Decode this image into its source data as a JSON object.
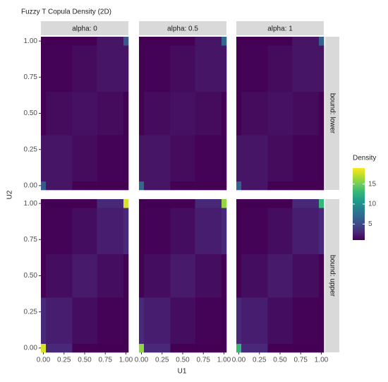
{
  "chart_data": {
    "type": "heatmap",
    "title": "Fuzzy T Copula Density (2D)",
    "x_label": "U1",
    "y_label": "U2",
    "facet_cols": [
      "alpha: 0",
      "alpha: 0.5",
      "alpha: 1"
    ],
    "facet_rows": [
      "bound: lower",
      "bound: upper"
    ],
    "x_bins": [
      -0.03,
      0.03,
      0.35,
      0.65,
      0.97,
      1.03
    ],
    "y_bins": [
      -0.03,
      0.03,
      0.35,
      0.65,
      0.97,
      1.03
    ],
    "xlim": [
      -0.03,
      1.03
    ],
    "ylim": [
      -0.03,
      1.03
    ],
    "xticks": [
      {
        "value": 0,
        "label": "0.00"
      },
      {
        "value": 0.25,
        "label": "0.25"
      },
      {
        "value": 0.5,
        "label": "0.50"
      },
      {
        "value": 0.75,
        "label": "0.75"
      },
      {
        "value": 1,
        "label": "1.00"
      }
    ],
    "yticks": [
      {
        "value": 0,
        "label": "0.00"
      },
      {
        "value": 0.25,
        "label": "0.25"
      },
      {
        "value": 0.5,
        "label": "0.50"
      },
      {
        "value": 0.75,
        "label": "0.75"
      },
      {
        "value": 1,
        "label": "1.00"
      }
    ],
    "colormap": "viridis",
    "legend_title": "Density",
    "clim": [
      1,
      19
    ],
    "cticks": [
      5,
      10,
      15
    ],
    "panels": [
      [
        [
          [
            6,
            2,
            1,
            1,
            1
          ],
          [
            2,
            2,
            1.5,
            1.1,
            1
          ],
          [
            1,
            1.5,
            1.8,
            1.5,
            1
          ],
          [
            1,
            1.1,
            1.5,
            2,
            2
          ],
          [
            1,
            1,
            1,
            2,
            6
          ]
        ],
        [
          [
            7,
            2,
            1,
            1,
            1
          ],
          [
            2,
            2,
            1.5,
            1.1,
            1
          ],
          [
            1,
            1.5,
            1.8,
            1.5,
            1
          ],
          [
            1,
            1.1,
            1.5,
            2,
            2
          ],
          [
            1,
            1,
            1,
            2,
            7
          ]
        ],
        [
          [
            6.5,
            2,
            1,
            1,
            1
          ],
          [
            2,
            2,
            1.5,
            1.1,
            1
          ],
          [
            1,
            1.5,
            1.8,
            1.5,
            1
          ],
          [
            1,
            1.1,
            1.5,
            2,
            2
          ],
          [
            1,
            1,
            1,
            2,
            6.5
          ]
        ]
      ],
      [
        [
          [
            18,
            3,
            1,
            1,
            1
          ],
          [
            3,
            2.5,
            1.6,
            1.1,
            1
          ],
          [
            1,
            1.6,
            2.3,
            1.6,
            1
          ],
          [
            1,
            1.1,
            1.6,
            2.5,
            3
          ],
          [
            1,
            1,
            1,
            3,
            18
          ]
        ],
        [
          [
            16,
            3,
            1,
            1,
            1
          ],
          [
            3,
            2.5,
            1.6,
            1.1,
            1
          ],
          [
            1,
            1.6,
            2.3,
            1.6,
            1
          ],
          [
            1,
            1.1,
            1.6,
            2.5,
            3
          ],
          [
            1,
            1,
            1,
            3,
            16
          ]
        ],
        [
          [
            13,
            3,
            1,
            1,
            1
          ],
          [
            3,
            2.5,
            1.6,
            1.1,
            1
          ],
          [
            1,
            1.6,
            2.3,
            1.6,
            1
          ],
          [
            1,
            1.1,
            1.6,
            2.5,
            3
          ],
          [
            1,
            1,
            1,
            3,
            13
          ]
        ]
      ]
    ]
  }
}
